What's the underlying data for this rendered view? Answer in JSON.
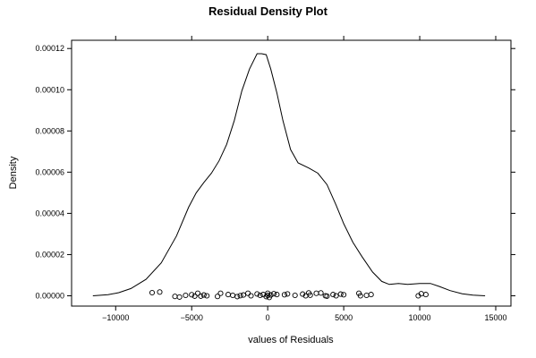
{
  "chart_data": {
    "type": "line",
    "title": "Residual Density Plot",
    "xlabel": "values of Residuals",
    "ylabel": "Density",
    "xlim": [
      -12900,
      16000
    ],
    "ylim": [
      -5e-06,
      0.000124
    ],
    "x_ticks": [
      -10000,
      -5000,
      0,
      5000,
      10000,
      15000
    ],
    "x_tick_labels": [
      "−10000",
      "−5000",
      "0",
      "5000",
      "10000",
      "15000"
    ],
    "y_ticks": [
      0,
      2e-05,
      4e-05,
      6e-05,
      8e-05,
      0.0001,
      0.00012
    ],
    "y_tick_labels": [
      "0.00000",
      "0.00002",
      "0.00004",
      "0.00006",
      "0.00008",
      "0.00010",
      "0.00012"
    ],
    "grid": false,
    "series": [
      {
        "x": [
          -11500,
          -10500,
          -9800,
          -9000,
          -8000,
          -7000,
          -6000,
          -5200,
          -4700,
          -4200,
          -3700,
          -3200,
          -2700,
          -2200,
          -1700,
          -1200,
          -700,
          -400,
          -100,
          200,
          600,
          1000,
          1500,
          2000,
          2700,
          3300,
          3900,
          4500,
          5000,
          5600,
          6200,
          6900,
          7500,
          8000,
          8600,
          9200,
          10000,
          10700,
          11300,
          12000,
          12800,
          13500,
          14300
        ],
        "y": [
          0,
          5e-07,
          1.5e-06,
          3.5e-06,
          8e-06,
          1.6e-05,
          2.9e-05,
          4.3e-05,
          5e-05,
          5.5e-05,
          5.95e-05,
          6.55e-05,
          7.35e-05,
          8.5e-05,
          9.95e-05,
          0.00011,
          0.0001175,
          0.0001175,
          0.000117,
          0.00011,
          9.85e-05,
          8.5e-05,
          7.1e-05,
          6.45e-05,
          6.2e-05,
          5.95e-05,
          5.4e-05,
          4.4e-05,
          3.5e-05,
          2.6e-05,
          1.9e-05,
          1.15e-05,
          7e-06,
          5.5e-06,
          6e-06,
          5.5e-06,
          6e-06,
          6e-06,
          4.5e-06,
          2.5e-06,
          1e-06,
          3e-07,
          0
        ]
      },
      {
        "type": "scatter",
        "points": [
          [
            -7600,
            1.5e-06
          ],
          [
            -7100,
            1.8e-06
          ],
          [
            -6100,
            -3e-07
          ],
          [
            -5800,
            -6e-07
          ],
          [
            -5400,
            2e-07
          ],
          [
            -5000,
            5e-07
          ],
          [
            -4800,
            -2e-07
          ],
          [
            -4600,
            1.2e-06
          ],
          [
            -4400,
            -2e-07
          ],
          [
            -4200,
            4e-07
          ],
          [
            -4000,
            0
          ],
          [
            -3300,
            -3e-07
          ],
          [
            -3100,
            1.2e-06
          ],
          [
            -2600,
            6e-07
          ],
          [
            -2300,
            2e-07
          ],
          [
            -2000,
            -4e-07
          ],
          [
            -1800,
            1e-07
          ],
          [
            -1600,
            4e-07
          ],
          [
            -1300,
            1.2e-06
          ],
          [
            -1100,
            0
          ],
          [
            -700,
            9e-07
          ],
          [
            -500,
            2e-07
          ],
          [
            -300,
            6e-07
          ],
          [
            -100,
            -4e-07
          ],
          [
            0,
            1.2e-06
          ],
          [
            0,
            2e-07
          ],
          [
            100,
            -8e-07
          ],
          [
            200,
            4e-07
          ],
          [
            400,
            1e-06
          ],
          [
            600,
            6e-07
          ],
          [
            1100,
            5e-07
          ],
          [
            1300,
            9e-07
          ],
          [
            1800,
            2e-07
          ],
          [
            2300,
            8e-07
          ],
          [
            2500,
            0
          ],
          [
            2700,
            1.4e-06
          ],
          [
            2800,
            3e-07
          ],
          [
            3200,
            1.2e-06
          ],
          [
            3500,
            1.4e-06
          ],
          [
            3800,
            0
          ],
          [
            3900,
            -2e-07
          ],
          [
            4300,
            6e-07
          ],
          [
            4500,
            0
          ],
          [
            4800,
            8e-07
          ],
          [
            5000,
            5e-07
          ],
          [
            6000,
            1.2e-06
          ],
          [
            6100,
            0
          ],
          [
            6500,
            2e-07
          ],
          [
            6800,
            6e-07
          ],
          [
            9900,
            0
          ],
          [
            10100,
            1e-06
          ],
          [
            10400,
            6e-07
          ]
        ]
      }
    ]
  }
}
